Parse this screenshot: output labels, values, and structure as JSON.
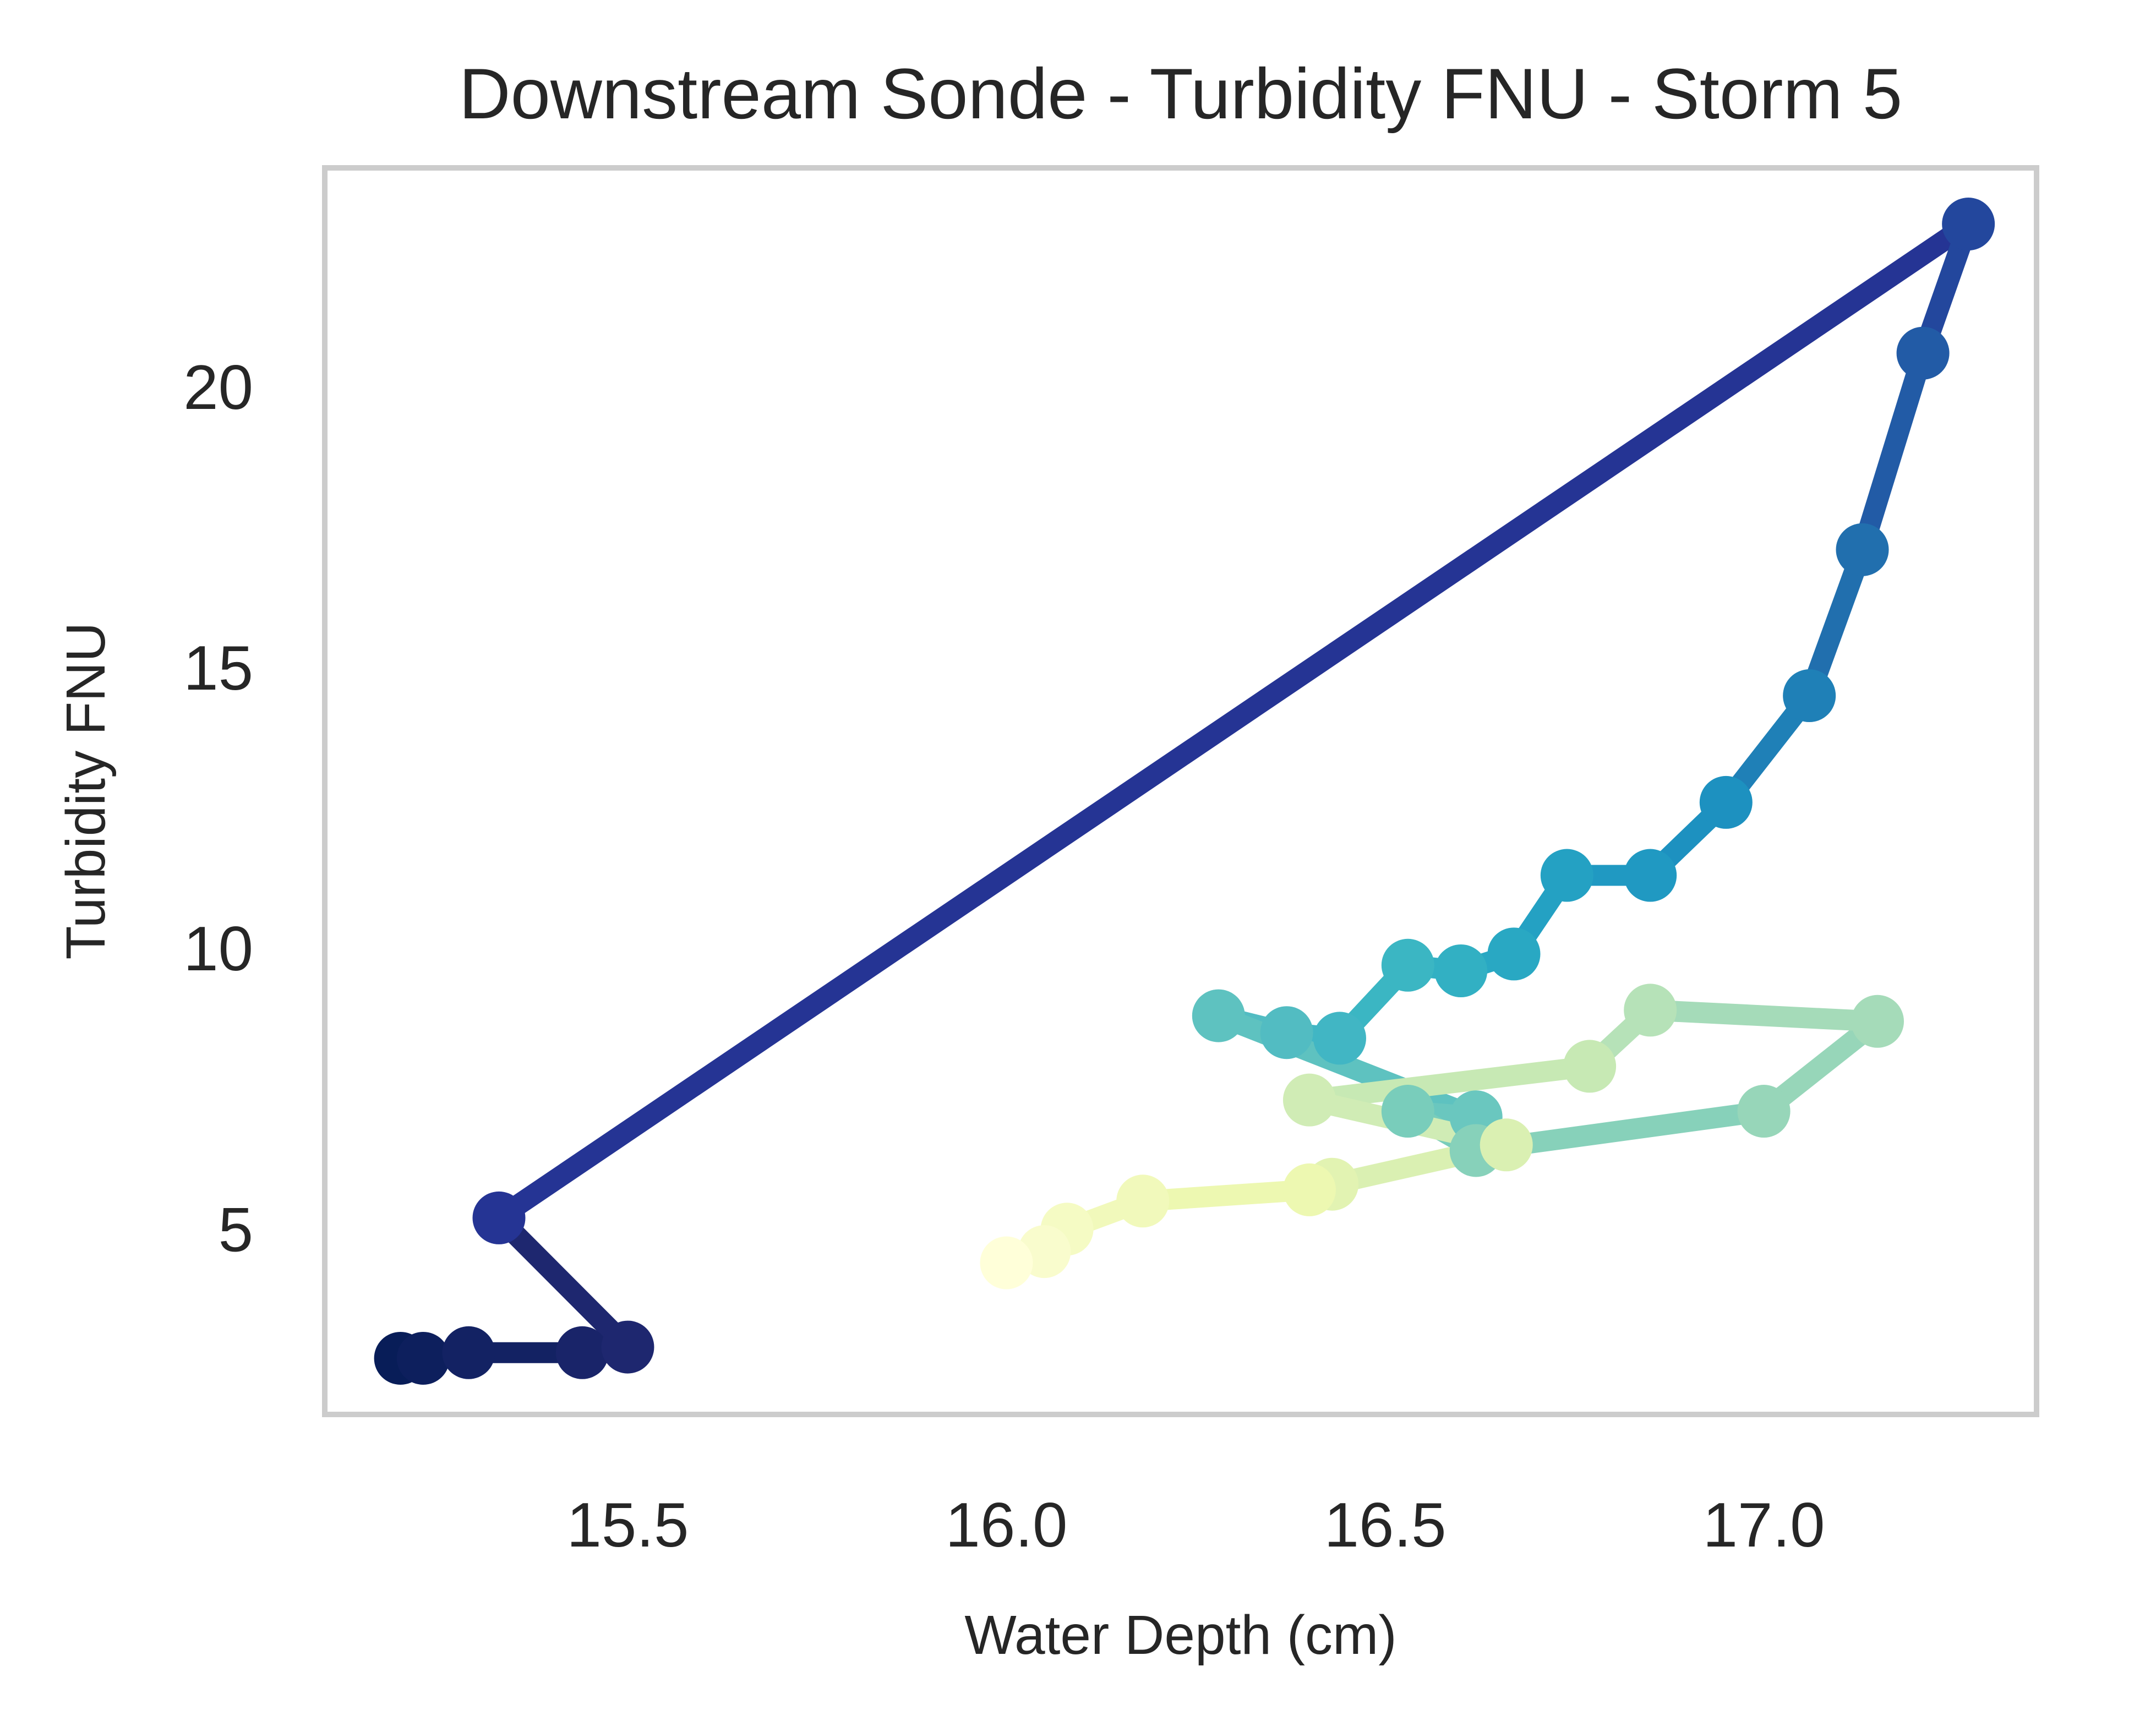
{
  "chart_data": {
    "type": "line",
    "title": "Downstream Sonde - Turbidity FNU - Storm 5",
    "xlabel": "Water Depth (cm)",
    "ylabel": "Turbidity FNU",
    "xlim": [
      15.1,
      17.36
    ],
    "ylim": [
      1.7,
      23.9
    ],
    "xticks": [
      15.5,
      16.0,
      16.5,
      17.0
    ],
    "xtick_labels": [
      "15.5",
      "16.0",
      "16.5",
      "17.0"
    ],
    "yticks": [
      5,
      10,
      15,
      20
    ],
    "ytick_labels": [
      "5",
      "10",
      "15",
      "20"
    ],
    "grid": false,
    "legend": "none",
    "colormap": "YlGnBu (colour runs with time order, dark = earliest)",
    "series": [
      {
        "x": [
          15.2,
          15.23,
          15.29,
          15.44,
          15.5,
          15.33,
          17.27,
          17.21,
          17.13,
          17.06,
          16.95,
          16.85,
          16.74,
          16.67,
          16.6,
          16.53,
          16.44,
          16.37,
          16.28,
          16.62,
          16.53,
          16.62,
          17.0,
          17.15,
          16.85,
          16.77,
          16.4,
          16.66,
          16.43,
          16.4,
          16.18,
          16.08,
          16.05,
          16.0
        ],
        "y": [
          2.7,
          2.7,
          2.8,
          2.8,
          2.9,
          5.2,
          22.9,
          20.6,
          17.1,
          14.5,
          12.6,
          11.3,
          11.3,
          9.9,
          9.6,
          9.7,
          8.4,
          8.5,
          8.8,
          7.0,
          7.1,
          6.4,
          7.1,
          8.7,
          8.9,
          7.9,
          7.3,
          6.5,
          5.8,
          5.7,
          5.5,
          5.0,
          4.6,
          4.4
        ],
        "colors": [
          "#081d58",
          "#0d1f5d",
          "#132263",
          "#192469",
          "#1e276f",
          "#253494",
          "#23479d",
          "#225ba6",
          "#216fae",
          "#1f80b7",
          "#1d91c0",
          "#2099c2",
          "#24a1c3",
          "#29a8c3",
          "#32b0c3",
          "#3bb6c3",
          "#41b6c4",
          "#52bcc2",
          "#5ec2c0",
          "#6ac7bf",
          "#79cdbb",
          "#87d1ba",
          "#97d6b9",
          "#a5dbb9",
          "#b6e2b8",
          "#c7e9b4",
          "#d0ecb5",
          "#daf0b2",
          "#e2f3b2",
          "#edf8b1",
          "#f1f9bb",
          "#f5fbc4",
          "#f9fccd",
          "#ffffd9"
        ]
      }
    ]
  }
}
